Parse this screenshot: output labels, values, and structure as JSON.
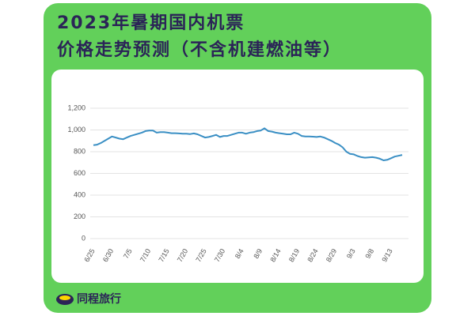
{
  "chart_data": {
    "type": "line",
    "title": [
      "2023年暑期国内机票",
      "价格走势预测（不含机建燃油等）"
    ],
    "brand": "同程旅行",
    "categories": [
      "6/25",
      null,
      null,
      null,
      null,
      "6/30",
      null,
      null,
      null,
      null,
      "7/5",
      null,
      null,
      null,
      null,
      "7/10",
      null,
      null,
      null,
      null,
      "7/15",
      null,
      null,
      null,
      null,
      "7/20",
      null,
      null,
      null,
      null,
      "7/25",
      null,
      null,
      null,
      null,
      "7/30",
      null,
      null,
      null,
      null,
      "8/4",
      null,
      null,
      null,
      null,
      "8/9",
      null,
      null,
      null,
      null,
      "8/14",
      null,
      null,
      null,
      null,
      "8/19",
      null,
      null,
      null,
      null,
      "8/24",
      null,
      null,
      null,
      null,
      "8/29",
      null,
      null,
      null,
      null,
      "9/3",
      null,
      null,
      null,
      null,
      "9/8",
      null,
      null,
      null,
      null,
      "9/13",
      null,
      null,
      null
    ],
    "series": [
      {
        "name": null,
        "color": "#3a8fc4",
        "values": [
          860,
          865,
          880,
          900,
          920,
          940,
          930,
          920,
          915,
          930,
          945,
          955,
          965,
          975,
          990,
          995,
          995,
          975,
          980,
          980,
          975,
          970,
          970,
          968,
          965,
          965,
          962,
          968,
          960,
          945,
          930,
          935,
          945,
          955,
          935,
          945,
          945,
          955,
          965,
          975,
          975,
          965,
          975,
          980,
          990,
          995,
          1015,
          990,
          985,
          975,
          970,
          965,
          960,
          960,
          975,
          965,
          945,
          940,
          940,
          938,
          935,
          940,
          930,
          915,
          900,
          880,
          865,
          840,
          800,
          780,
          775,
          760,
          750,
          745,
          748,
          750,
          745,
          735,
          720,
          725,
          740,
          755,
          762,
          770
        ]
      }
    ],
    "ylim": [
      0,
      1200
    ],
    "yticks": [
      0,
      200,
      400,
      600,
      800,
      {
        "value": 1000,
        "label": "1,000"
      },
      {
        "value": 1200,
        "label": "1,200"
      }
    ],
    "grid": true
  }
}
